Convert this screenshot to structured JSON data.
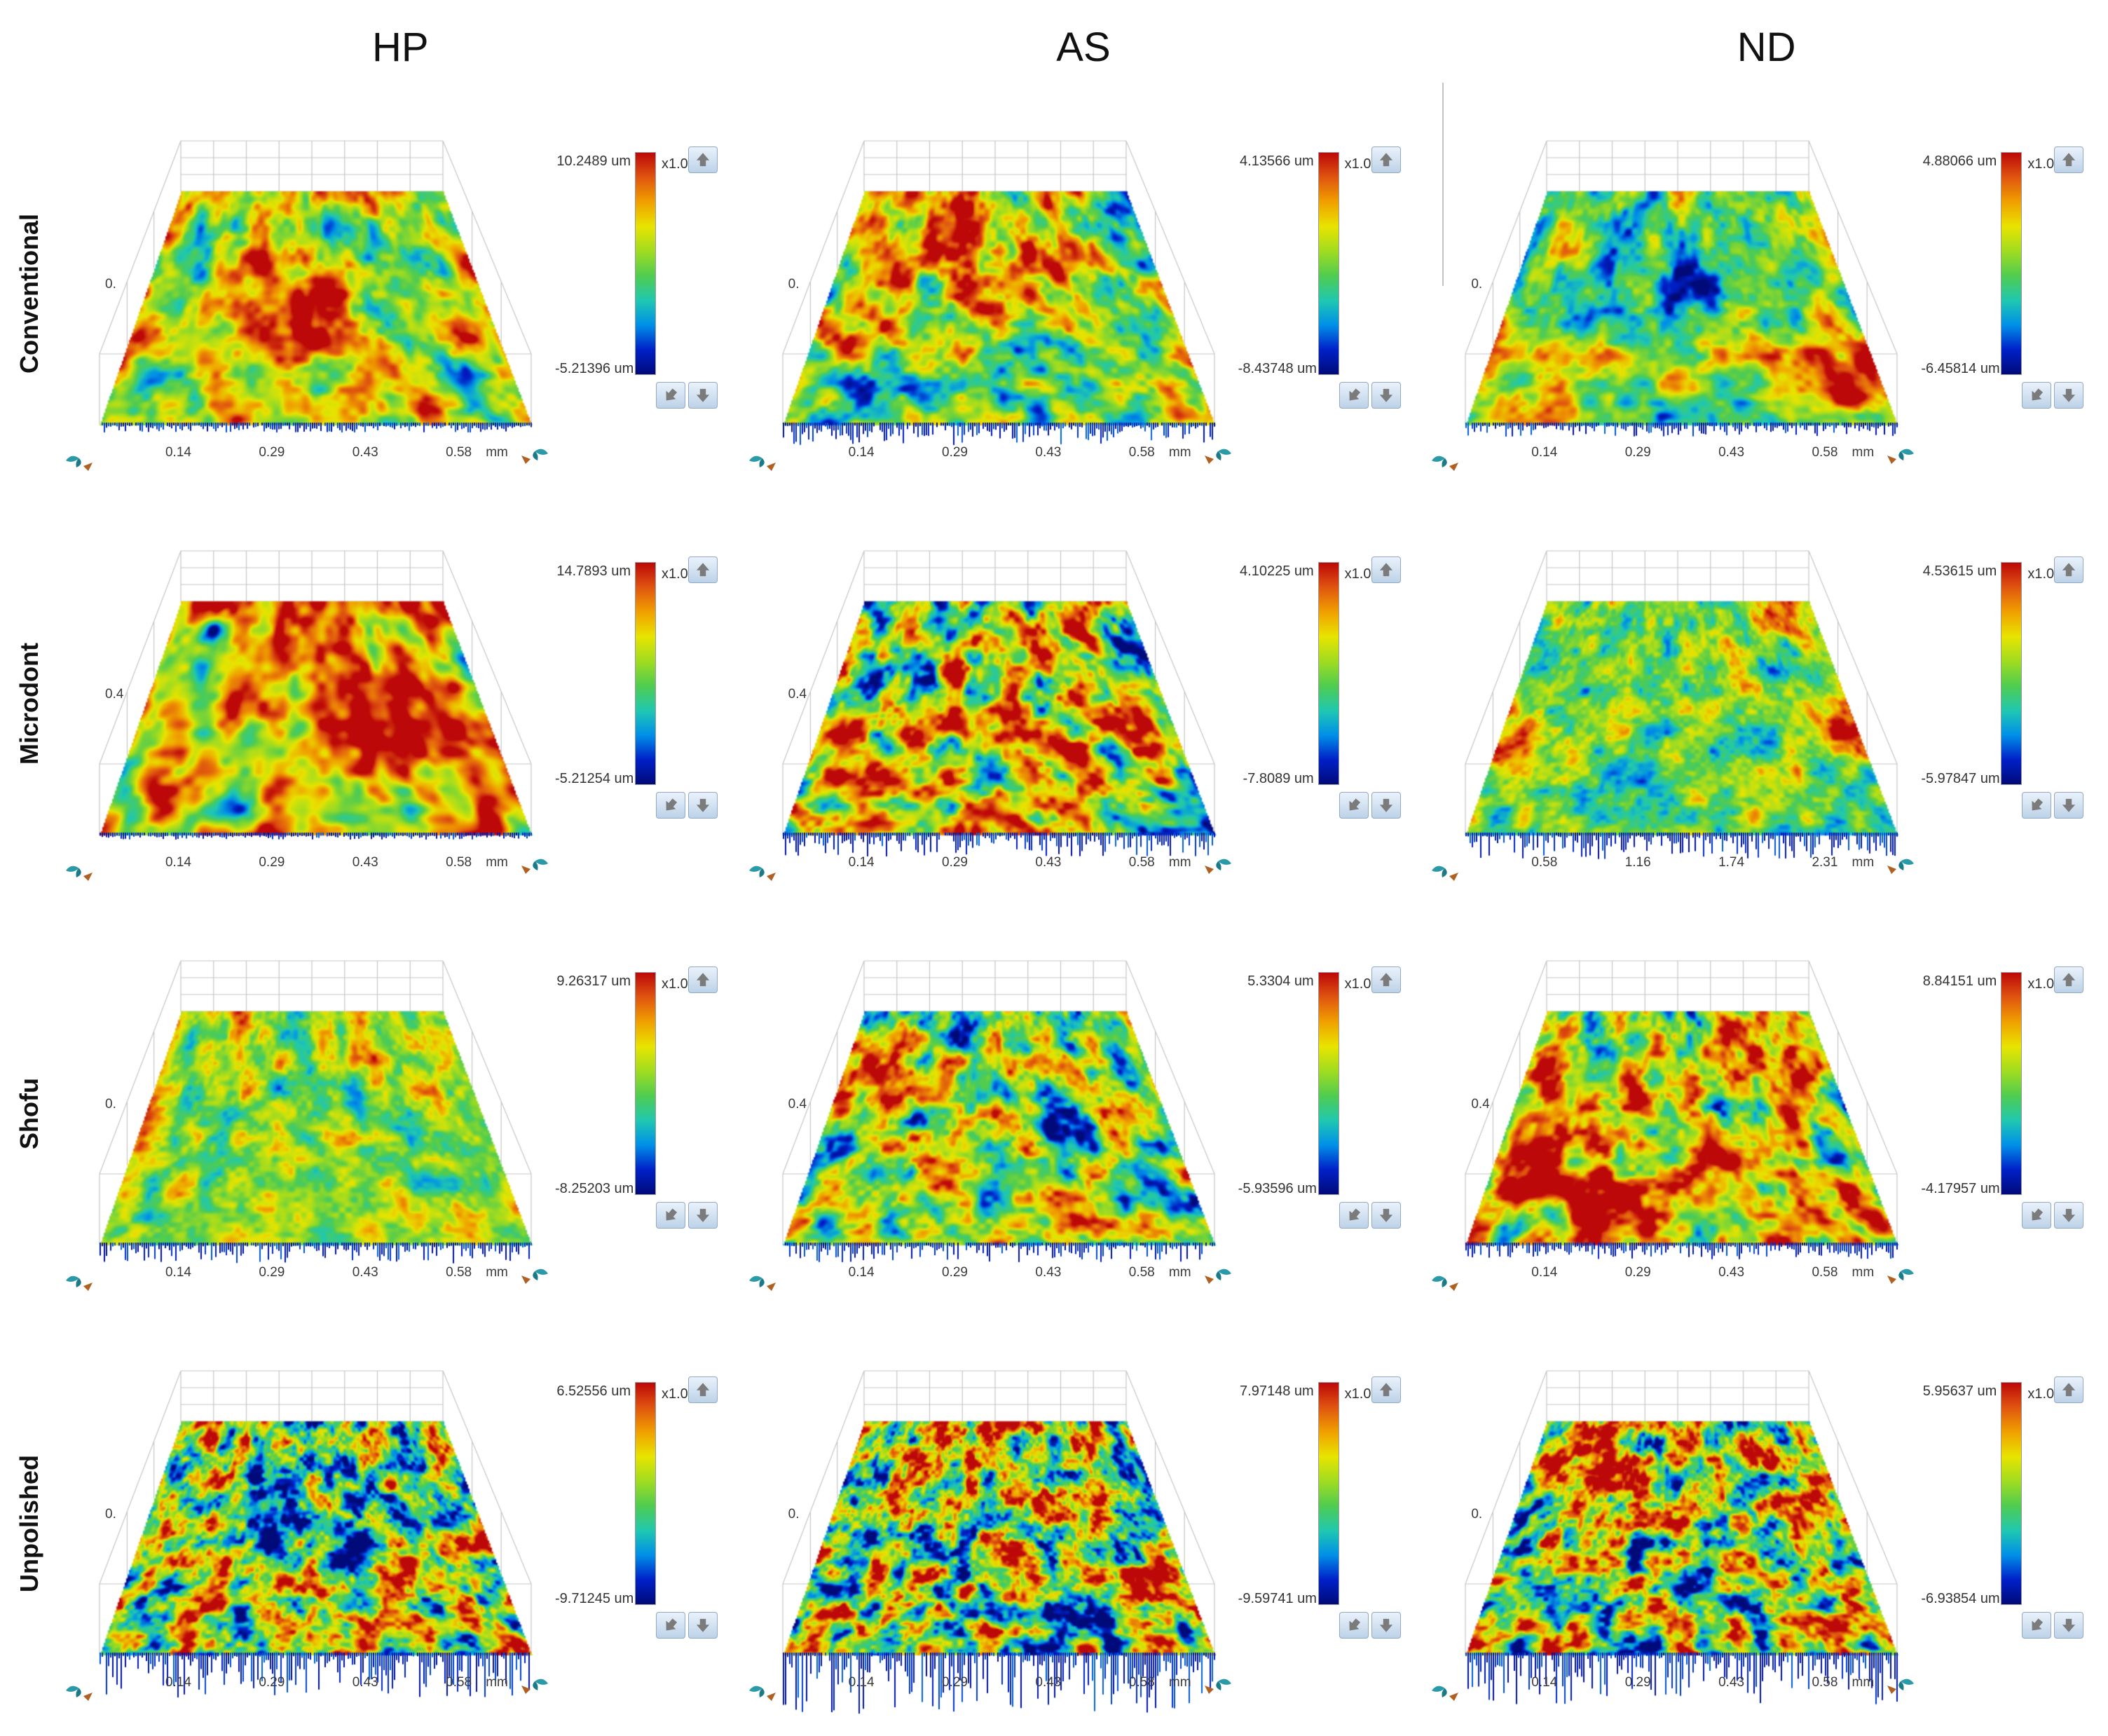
{
  "figure": {
    "columns": [
      "HP",
      "AS",
      "ND"
    ],
    "rows": [
      "Conventional",
      "Microdont",
      "Shofu",
      "Unpolished"
    ],
    "icons": {
      "up_button": "up-arrow-icon",
      "diag_button": "down-left-arrow-icon",
      "down_button": "down-arrow-icon",
      "corner_widget": "view-rotate-gizmo-icon"
    },
    "colors": {
      "button_face": "#cfe0f1",
      "button_border": "#8fa9c6",
      "wireframe": "#c6c6c6",
      "arrow_glyph": "#7b7b7b"
    }
  },
  "chart_data": {
    "type": "heatmap",
    "subtype": "3d-surface-topography-panels",
    "z_unit": "um",
    "legend_position": "right-colorbar-per-panel",
    "colormap_low_to_high": [
      "#000a78",
      "#0020c8",
      "#0090e8",
      "#20c8b0",
      "#50cc50",
      "#a0dc20",
      "#e8e400",
      "#f0a000",
      "#e05510",
      "#bc0808"
    ],
    "panels": [
      {
        "row": "Conventional",
        "col": "HP",
        "z_max": "10.2489 um",
        "z_min": "-5.21396 um",
        "zoom": "x1.0",
        "y_tick": "0.",
        "x_ticks": [
          "0.14",
          "0.29",
          "0.43",
          "0.58"
        ],
        "x_unit": "mm",
        "style": {
          "bias": 0.1,
          "contrast": 0.75,
          "scale": 9,
          "streakAngle": -20,
          "streakStrength": 0.07,
          "fringe": 10,
          "patches": [
            {
              "u": 0.5,
              "v": 0.5,
              "r": 0.35,
              "d": 0.12
            }
          ]
        }
      },
      {
        "row": "Conventional",
        "col": "AS",
        "z_max": "4.13566 um",
        "z_min": "-8.43748 um",
        "zoom": "x1.0",
        "y_tick": "0.",
        "x_ticks": [
          "0.14",
          "0.29",
          "0.43",
          "0.58"
        ],
        "x_unit": "mm",
        "style": {
          "bias": 0.03,
          "contrast": 0.8,
          "scale": 10,
          "streakAngle": -35,
          "streakStrength": 0.09,
          "fringe": 28,
          "patches": [
            {
              "u": 0.5,
              "v": 0.08,
              "r": 0.3,
              "d": 0.28
            },
            {
              "u": 0.12,
              "v": 0.8,
              "r": 0.1,
              "d": -0.45
            }
          ]
        }
      },
      {
        "row": "Conventional",
        "col": "ND",
        "z_max": "4.88066 um",
        "z_min": "-6.45814 um",
        "zoom": "x1.0",
        "y_tick": "0.",
        "x_ticks": [
          "0.14",
          "0.29",
          "0.43",
          "0.58"
        ],
        "x_unit": "mm",
        "style": {
          "bias": 0.02,
          "contrast": 0.7,
          "scale": 10,
          "streakAngle": -15,
          "streakStrength": 0.05,
          "fringe": 16,
          "patches": [
            {
              "u": 0.42,
              "v": 0.45,
              "r": 0.22,
              "d": -0.33
            },
            {
              "u": 0.92,
              "v": 0.8,
              "r": 0.18,
              "d": 0.38
            }
          ]
        }
      },
      {
        "row": "Microdont",
        "col": "HP",
        "z_max": "14.7893 um",
        "z_min": "-5.21254 um",
        "zoom": "x1.0",
        "y_tick": "0.4",
        "x_ticks": [
          "0.14",
          "0.29",
          "0.43",
          "0.58"
        ],
        "x_unit": "mm",
        "style": {
          "bias": 0.24,
          "contrast": 0.8,
          "scale": 7,
          "streakAngle": 0,
          "streakStrength": 0.1,
          "fringe": 6,
          "patches": [
            {
              "u": 0.15,
              "v": 0.12,
              "r": 0.06,
              "d": -0.6
            },
            {
              "u": 0.8,
              "v": 0.1,
              "r": 0.07,
              "d": -0.4
            },
            {
              "u": 0.3,
              "v": 0.9,
              "r": 0.08,
              "d": -0.5
            }
          ]
        }
      },
      {
        "row": "Microdont",
        "col": "AS",
        "z_max": "4.10225 um",
        "z_min": "-7.8089 um",
        "zoom": "x1.0",
        "y_tick": "0.4",
        "x_ticks": [
          "0.14",
          "0.29",
          "0.43",
          "0.58"
        ],
        "x_unit": "mm",
        "style": {
          "bias": 0.09,
          "contrast": 1.05,
          "scale": 11,
          "streakAngle": -40,
          "streakStrength": 0.12,
          "fringe": 30,
          "patches": [
            {
              "u": 0.1,
              "v": 0.35,
              "r": 0.09,
              "d": -0.4
            }
          ]
        }
      },
      {
        "row": "Microdont",
        "col": "ND",
        "z_max": "4.53615 um",
        "z_min": "-5.97847 um",
        "zoom": "x1.0",
        "x_ticks": [
          "0.58",
          "1.16",
          "1.74",
          "2.31"
        ],
        "x_unit": "mm",
        "style": {
          "bias": -0.02,
          "contrast": 0.55,
          "scale": 15,
          "streakAngle": 0,
          "streakStrength": 0.03,
          "fringe": 34,
          "patches": [
            {
              "u": 0.02,
              "v": 0.6,
              "r": 0.12,
              "d": 0.45
            },
            {
              "u": 0.98,
              "v": 0.55,
              "r": 0.12,
              "d": 0.45
            },
            {
              "u": 0.85,
              "v": 0.05,
              "r": 0.12,
              "d": 0.3
            }
          ]
        }
      },
      {
        "row": "Shofu",
        "col": "HP",
        "z_max": "9.26317 um",
        "z_min": "-8.25203 um",
        "zoom": "x1.0",
        "y_tick": "0.",
        "x_ticks": [
          "0.14",
          "0.29",
          "0.43",
          "0.58"
        ],
        "x_unit": "mm",
        "style": {
          "bias": 0.05,
          "contrast": 0.55,
          "scale": 13,
          "streakAngle": -6,
          "streakStrength": 0.06,
          "fringe": 26,
          "patches": []
        }
      },
      {
        "row": "Shofu",
        "col": "AS",
        "z_max": "5.3304 um",
        "z_min": "-5.93596 um",
        "zoom": "x1.0",
        "y_tick": "0.4",
        "x_ticks": [
          "0.14",
          "0.29",
          "0.43",
          "0.58"
        ],
        "x_unit": "mm",
        "style": {
          "bias": 0.02,
          "contrast": 0.85,
          "scale": 12,
          "streakAngle": -28,
          "streakStrength": 0.08,
          "fringe": 24,
          "patches": [
            {
              "u": 0.66,
              "v": 0.5,
              "r": 0.08,
              "d": -0.5
            },
            {
              "u": 0.15,
              "v": 0.3,
              "r": 0.15,
              "d": 0.25
            }
          ]
        }
      },
      {
        "row": "Shofu",
        "col": "ND",
        "z_max": "8.84151 um",
        "z_min": "-4.17957 um",
        "zoom": "x1.0",
        "y_tick": "0.4",
        "x_ticks": [
          "0.14",
          "0.29",
          "0.43",
          "0.58"
        ],
        "x_unit": "mm",
        "style": {
          "bias": 0.07,
          "contrast": 0.9,
          "scale": 11,
          "streakAngle": -18,
          "streakStrength": 0.1,
          "fringe": 20,
          "patches": [
            {
              "u": 0.25,
              "v": 0.7,
              "r": 0.28,
              "d": 0.33
            },
            {
              "u": 0.6,
              "v": 0.4,
              "r": 0.07,
              "d": -0.4
            }
          ]
        }
      },
      {
        "row": "Unpolished",
        "col": "HP",
        "z_max": "6.52556 um",
        "z_min": "-9.71245 um",
        "zoom": "x1.0",
        "y_tick": "0.",
        "x_ticks": [
          "0.14",
          "0.29",
          "0.43",
          "0.58"
        ],
        "x_unit": "mm",
        "style": {
          "bias": 0.03,
          "contrast": 1.15,
          "scale": 16,
          "streakAngle": 0,
          "streakStrength": 0,
          "fringe": 60,
          "patches": [
            {
              "u": 0.45,
              "v": 0.45,
              "r": 0.16,
              "d": -0.3
            },
            {
              "u": 0.9,
              "v": 0.55,
              "r": 0.12,
              "d": 0.3
            }
          ]
        }
      },
      {
        "row": "Unpolished",
        "col": "AS",
        "z_max": "7.97148 um",
        "z_min": "-9.59741 um",
        "zoom": "x1.0",
        "y_tick": "0.",
        "x_ticks": [
          "0.14",
          "0.29",
          "0.43",
          "0.58"
        ],
        "x_unit": "mm",
        "style": {
          "bias": 0.06,
          "contrast": 1.2,
          "scale": 17,
          "streakAngle": 0,
          "streakStrength": 0,
          "fringe": 85,
          "patches": [
            {
              "u": 0.3,
              "v": 0.08,
              "r": 0.15,
              "d": 0.3
            }
          ]
        }
      },
      {
        "row": "Unpolished",
        "col": "ND",
        "z_max": "5.95637 um",
        "z_min": "-6.93854 um",
        "zoom": "x1.0",
        "y_tick": "0.",
        "x_ticks": [
          "0.14",
          "0.29",
          "0.43",
          "0.58"
        ],
        "x_unit": "mm",
        "style": {
          "bias": 0.05,
          "contrast": 1.15,
          "scale": 16,
          "streakAngle": 0,
          "streakStrength": 0,
          "fringe": 70,
          "patches": [
            {
              "u": 0.12,
              "v": 0.12,
              "r": 0.12,
              "d": 0.35
            }
          ]
        }
      }
    ]
  }
}
